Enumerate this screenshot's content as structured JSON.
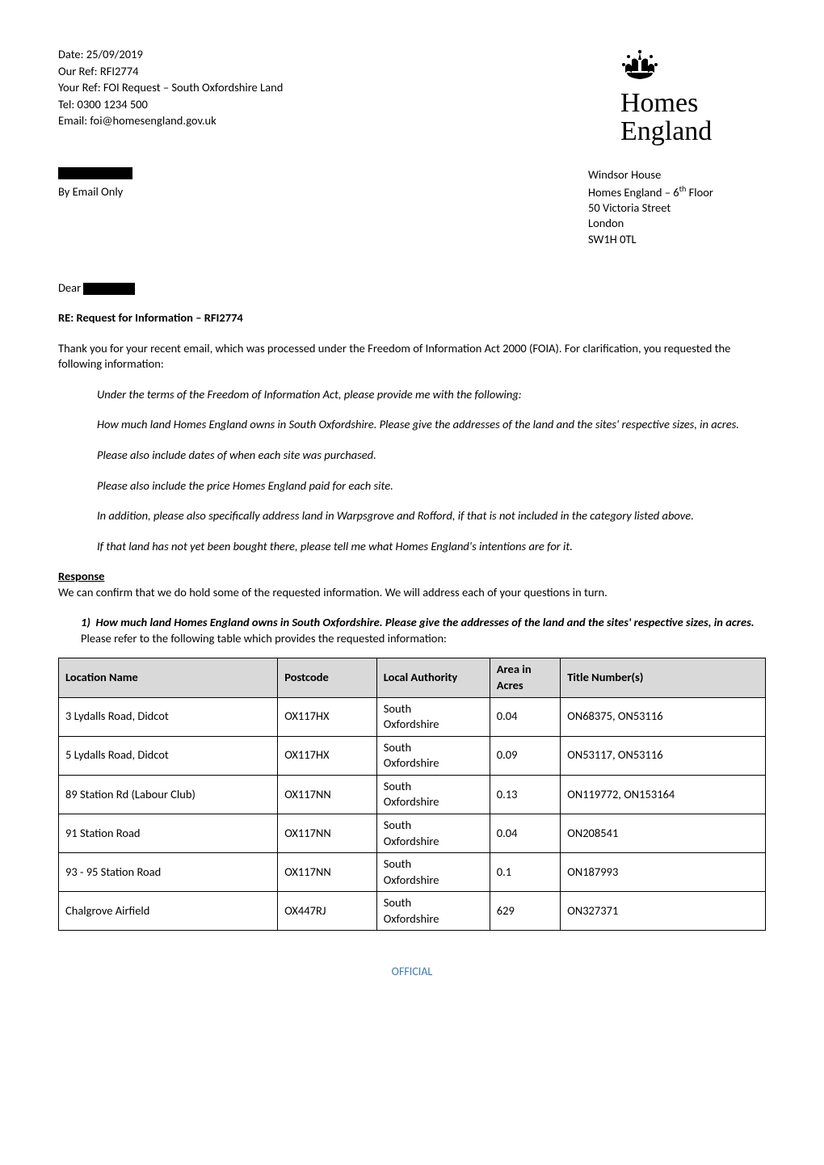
{
  "header": {
    "date_label": "Date: 25/09/2019",
    "our_ref": "Our Ref: RFI2774",
    "your_ref": "Your Ref: FOI Request – South Oxfordshire Land",
    "tel": "Tel: 0300 1234 500",
    "email": "Email: foi@homesengland.gov.uk"
  },
  "logo": {
    "line1": "Homes",
    "line2": "England",
    "crown_fill": "#000000"
  },
  "from": {
    "by_email": "By Email Only"
  },
  "address": {
    "line1": "Windsor House",
    "line2_pre": "Homes England – 6",
    "line2_sup": "th",
    "line2_post": " Floor",
    "line3": "50 Victoria Street",
    "line4": "London",
    "line5": "SW1H 0TL"
  },
  "dear": "Dear",
  "re": "RE: Request for Information – RFI2774",
  "intro": {
    "p1": "Thank you for your recent email, which was processed under the Freedom of Information Act 2000 (FOIA). For clarification, you requested the following information:"
  },
  "quoted": {
    "q1": "Under the terms of the Freedom of Information Act, please provide me with the following:",
    "q2": "How much land Homes England owns in South Oxfordshire. Please give the addresses of the land and the sites' respective sizes, in acres.",
    "q3": "Please also include dates of when each site was purchased.",
    "q4": "Please also include the price Homes England paid for each site.",
    "q5": "In addition, please also specifically address land in Warpsgrove and Rofford, if that is not included in the category listed above.",
    "q6": "If that land has not yet been bought there, please tell me what Homes England's intentions are for it."
  },
  "response": {
    "heading": "Response",
    "para": "We can confirm that we do hold some of the requested information. We will address each of your questions in turn.",
    "item1_num": "1)",
    "item1_text": "How much land Homes England owns in South Oxfordshire. Please give the addresses of the land and the sites' respective sizes, in acres.",
    "item1_after": "Please refer to the following table which provides the requested information:"
  },
  "table": {
    "columns": [
      "Location Name",
      "Postcode",
      "Local Authority",
      "Area in Acres",
      "Title Number(s)"
    ],
    "rows": [
      [
        "3 Lydalls Road, Didcot",
        "OX117HX",
        "South Oxfordshire",
        "0.04",
        "ON68375, ON53116"
      ],
      [
        "5 Lydalls Road, Didcot",
        "OX117HX",
        "South Oxfordshire",
        "0.09",
        "ON53117, ON53116"
      ],
      [
        "89 Station Rd (Labour Club)",
        "OX117NN",
        "South Oxfordshire",
        "0.13",
        "ON119772, ON153164"
      ],
      [
        "91 Station Road",
        "OX117NN",
        "South Oxfordshire",
        "0.04",
        "ON208541"
      ],
      [
        "93 - 95 Station Road",
        "OX117NN",
        "South Oxfordshire",
        "0.1",
        "ON187993"
      ],
      [
        "Chalgrove Airfield",
        "OX447RJ",
        "South Oxfordshire",
        "629",
        "ON327371"
      ]
    ],
    "header_bg": "#d9d9d9",
    "border_color": "#000000",
    "la_cell_html": "South<br>Oxfordshire"
  },
  "footer": {
    "label": "OFFICIAL",
    "color": "#3a7ab8"
  },
  "redaction": {
    "width_name": "92px",
    "width_dear": "64px"
  }
}
